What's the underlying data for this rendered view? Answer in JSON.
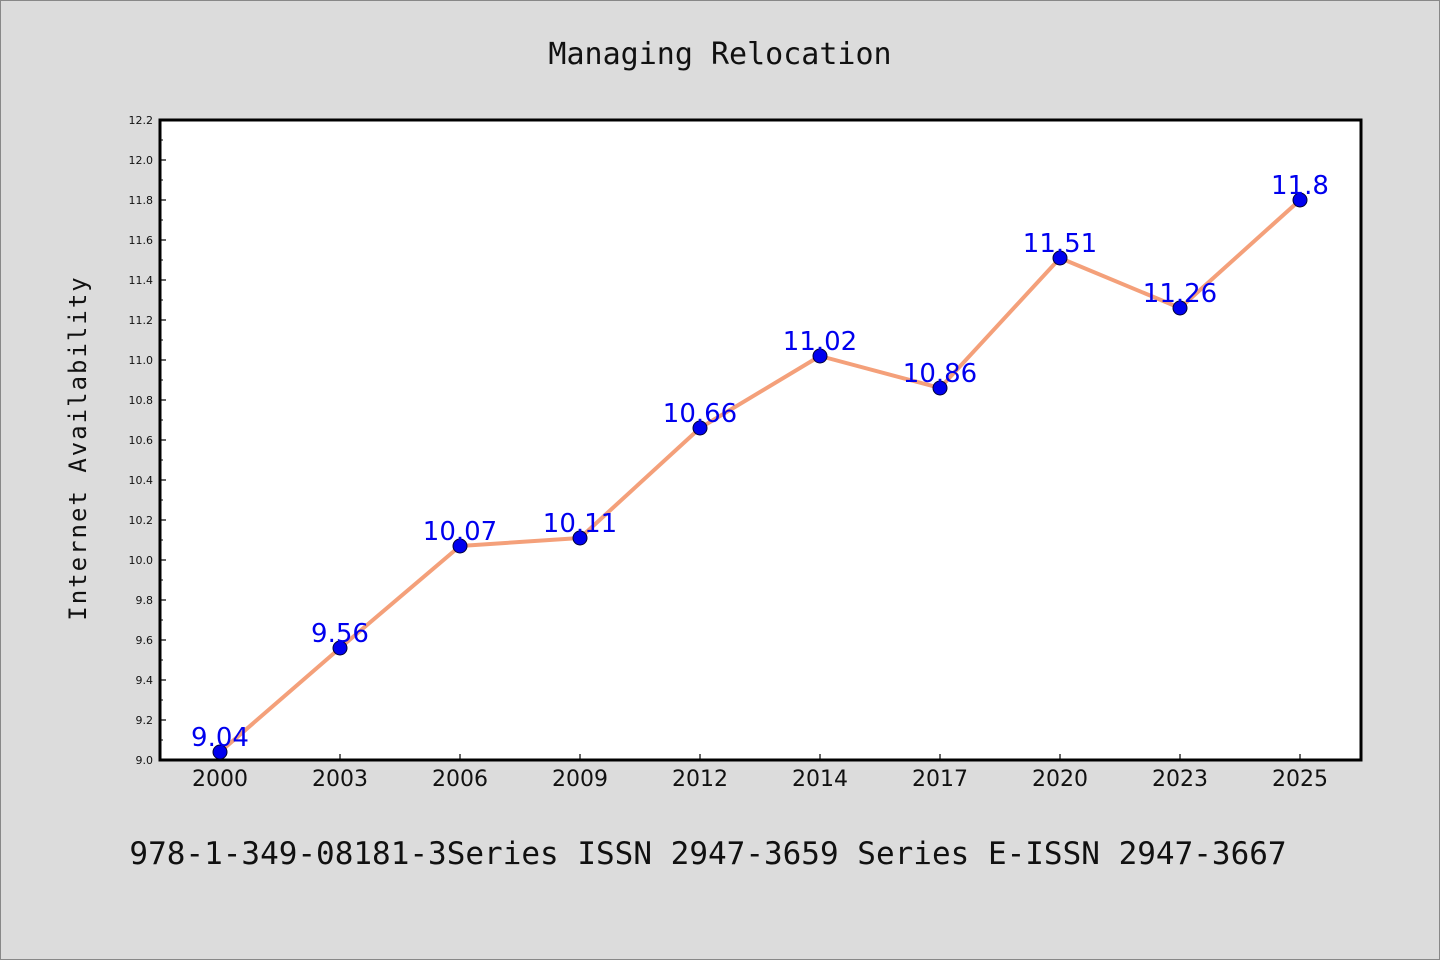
{
  "chart_data": {
    "type": "line",
    "title": "Managing Relocation",
    "xlabel": "",
    "ylabel": "Internet Availability",
    "categories": [
      "2000",
      "2003",
      "2006",
      "2009",
      "2012",
      "2014",
      "2017",
      "2020",
      "2023",
      "2025"
    ],
    "series": [
      {
        "values": [
          9.04,
          9.56,
          10.07,
          10.11,
          10.66,
          11.02,
          10.86,
          11.51,
          11.26,
          11.8
        ]
      }
    ],
    "data_labels": [
      "9.04",
      "9.56",
      "10.07",
      "10.11",
      "10.66",
      "11.02",
      "10.86",
      "11.51",
      "11.26",
      "11.8"
    ],
    "ylim": [
      9.0,
      12.2
    ],
    "yticks": [
      "9.0",
      "9.2",
      "9.4",
      "9.6",
      "9.8",
      "10.0",
      "10.2",
      "10.4",
      "10.6",
      "10.8",
      "11.0",
      "11.2",
      "11.4",
      "11.6",
      "11.8",
      "12.0",
      "12.2"
    ],
    "grid": false,
    "legend": "none",
    "colors": {
      "line": "#f4a07a",
      "marker": "#0000ee",
      "data_label": "#0000ee",
      "background": "#dcdcdc",
      "plot_background": "#ffffff"
    }
  },
  "footer": "978-1-349-08181-3Series ISSN 2947-3659 Series E-ISSN 2947-3667"
}
